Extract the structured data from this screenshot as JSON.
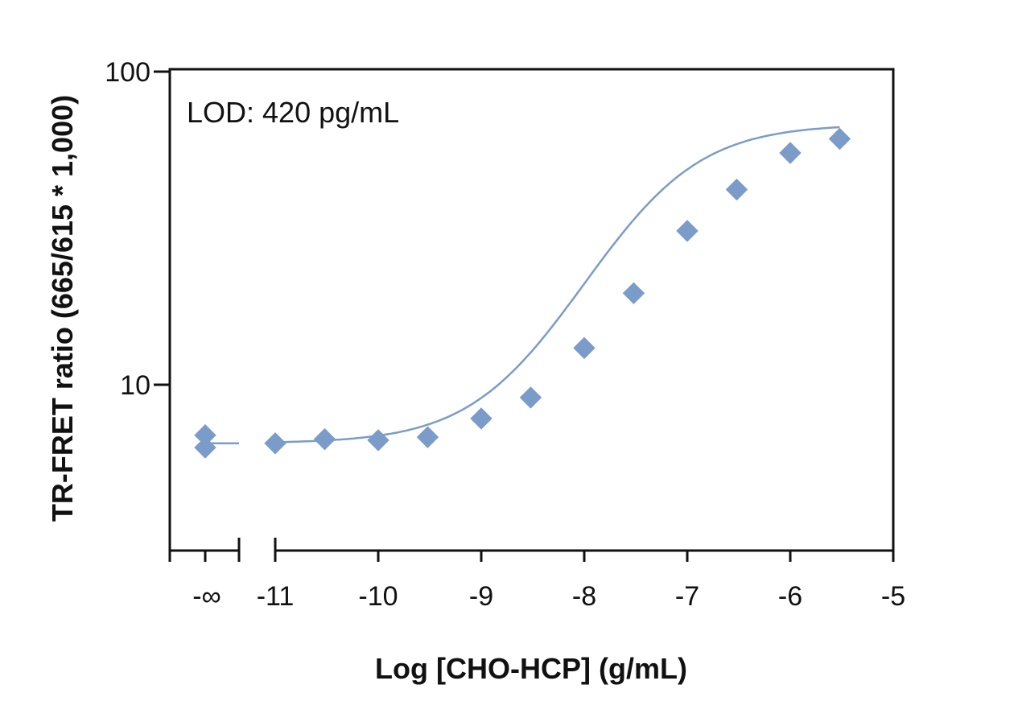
{
  "chart_data": {
    "type": "scatter",
    "xlabel": "Log [CHO-HCP] (g/mL)",
    "ylabel": "TR-FRET ratio (665/615 * 1,000)",
    "annotation": "LOD: 420 pg/mL",
    "y_scale": "log",
    "ylim": [
      3,
      100
    ],
    "xlim": [
      -11.4,
      -5
    ],
    "y_ticks": [
      {
        "value": 10,
        "label": "10"
      },
      {
        "value": 100,
        "label": "100"
      }
    ],
    "x_ticks": [
      {
        "value": -11,
        "label": "-11"
      },
      {
        "value": -10,
        "label": "-10"
      },
      {
        "value": -9,
        "label": "-9"
      },
      {
        "value": -8,
        "label": "-8"
      },
      {
        "value": -7,
        "label": "-7"
      },
      {
        "value": -6,
        "label": "-6"
      },
      {
        "value": -5,
        "label": "-5"
      }
    ],
    "zero_label": "-∞",
    "zero_points": [
      6.9,
      6.3
    ],
    "points": [
      {
        "x": -11,
        "y": 6.5
      },
      {
        "x": -10.52,
        "y": 6.7
      },
      {
        "x": -10,
        "y": 6.65
      },
      {
        "x": -9.52,
        "y": 6.8
      },
      {
        "x": -9,
        "y": 7.8
      },
      {
        "x": -8.52,
        "y": 9.1
      },
      {
        "x": -8,
        "y": 13.1
      },
      {
        "x": -7.52,
        "y": 19.6
      },
      {
        "x": -7,
        "y": 31.0
      },
      {
        "x": -6.52,
        "y": 42.0
      },
      {
        "x": -6,
        "y": 55.0
      },
      {
        "x": -5.52,
        "y": 61.0
      }
    ],
    "fit": {
      "bottom": 6.5,
      "top": 68,
      "log_ec50": -7.4,
      "hill": 0.85
    },
    "series_color": "#7b9cc8",
    "axis_color": "#111111"
  }
}
